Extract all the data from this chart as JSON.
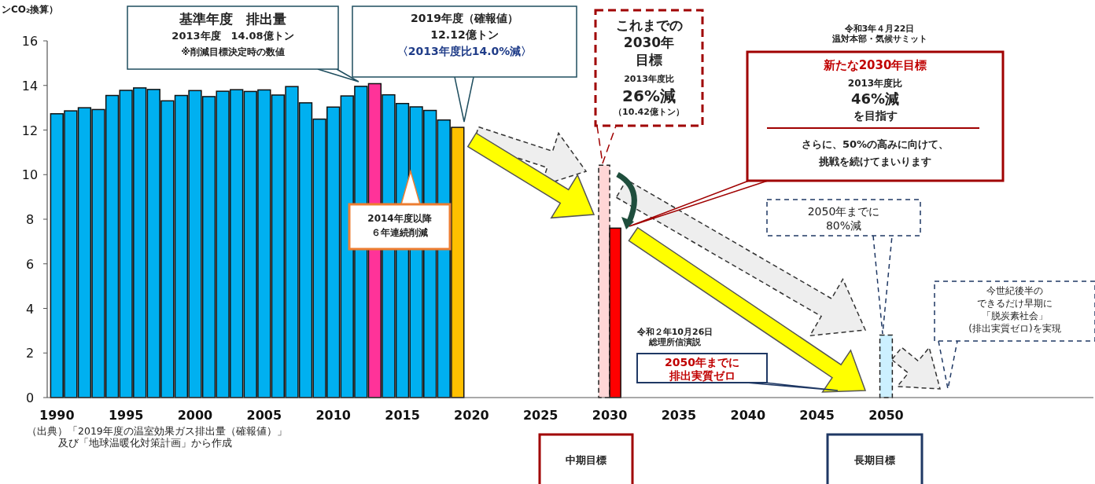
{
  "chart_data": {
    "type": "bar",
    "ylabel": "ンCO₂換算）",
    "xlim": [
      1989.3,
      2065
    ],
    "ylim": [
      0,
      16
    ],
    "xticks": [
      1990,
      1995,
      2000,
      2005,
      2010,
      2015,
      2020,
      2025,
      2030,
      2035,
      2040,
      2045,
      2050
    ],
    "yticks": [
      0,
      2,
      4,
      6,
      8,
      10,
      12,
      14,
      16
    ],
    "grid": false,
    "series": [
      {
        "x": [
          1990,
          1991,
          1992,
          1993,
          1994,
          1995,
          1996,
          1997,
          1998,
          1999,
          2000,
          2001,
          2002,
          2003,
          2004,
          2005,
          2006,
          2007,
          2008,
          2009,
          2010,
          2011,
          2012,
          2013,
          2014,
          2015,
          2016,
          2017,
          2018,
          2019
        ],
        "values": [
          12.73,
          12.86,
          13.0,
          12.92,
          13.55,
          13.78,
          13.89,
          13.82,
          13.31,
          13.55,
          13.77,
          13.5,
          13.74,
          13.81,
          13.73,
          13.8,
          13.57,
          13.95,
          13.22,
          12.49,
          13.03,
          13.53,
          13.96,
          14.08,
          13.58,
          13.19,
          13.04,
          12.88,
          12.45,
          12.12
        ],
        "colors": [
          "#00b0f0",
          "#00b0f0",
          "#00b0f0",
          "#00b0f0",
          "#00b0f0",
          "#00b0f0",
          "#00b0f0",
          "#00b0f0",
          "#00b0f0",
          "#00b0f0",
          "#00b0f0",
          "#00b0f0",
          "#00b0f0",
          "#00b0f0",
          "#00b0f0",
          "#00b0f0",
          "#00b0f0",
          "#00b0f0",
          "#00b0f0",
          "#00b0f0",
          "#00b0f0",
          "#00b0f0",
          "#00b0f0",
          "#ff3399",
          "#00b0f0",
          "#00b0f0",
          "#00b0f0",
          "#00b0f0",
          "#00b0f0",
          "#ffc000"
        ]
      },
      {
        "x": [
          2030
        ],
        "values": [
          10.42
        ],
        "color": "#ffd6d6",
        "line_style": "dashed"
      },
      {
        "x": [
          2030
        ],
        "values": [
          7.6
        ],
        "color": "#ff0000"
      },
      {
        "x": [
          2050
        ],
        "values": [
          2.8
        ],
        "color": "#ccf0ff",
        "line_style": "dashed"
      }
    ],
    "annotations": [
      "基準年度　排出量2013年度　14.08億トン※削減目標決定時の数値",
      "2019年度（確報値）12.12億トン〈2013年度比14.0%減〉",
      "2014年度以降６年連続削減",
      "これまでの2030年目標2013年度比26%減（10.42億トン）",
      "令和3年４月22日温対本部・気候サミット",
      "新たな2030年目標2013年度比46%減を目指すさらに、50%の高みに向けて、挑戦を続けてまいります",
      "2050年までに80%減",
      "今世紀後半のできるだけ早期に「脱炭素社会」(排出実質ゼロ)を実現",
      "令和２年10月26日総理所信演説",
      "2050年までに排出実質ゼロ",
      "中期目標",
      "長期目標",
      "（出典）「2019年度の温室効果ガス排出量（確報値）」及び「地球温暖化対策計画」から作成"
    ]
  }
}
